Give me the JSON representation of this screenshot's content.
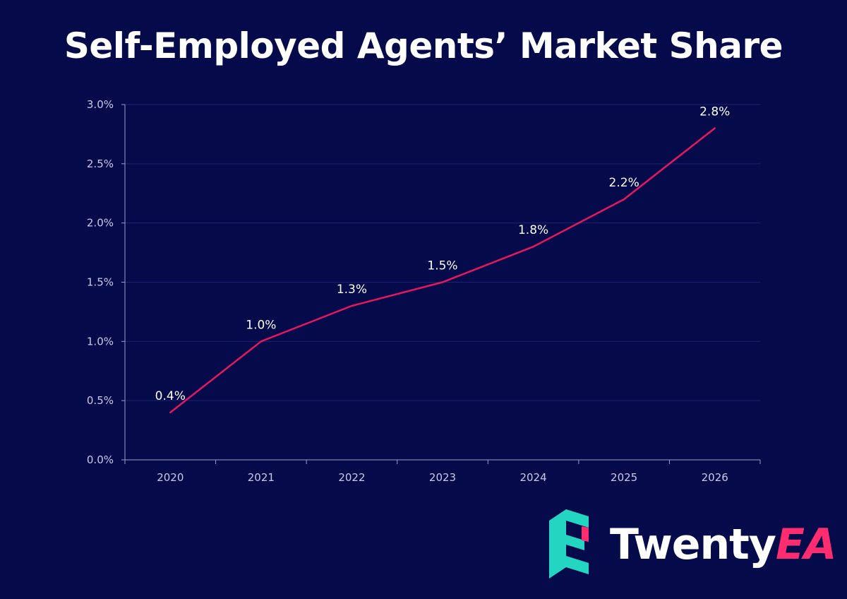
{
  "colors": {
    "background": "#050a4a",
    "line": "#e8175d",
    "grid": "#1b2470",
    "axis": "#9aa0c8",
    "brand_teal": "#22d6c2",
    "brand_pink": "#ff2d6f"
  },
  "brand": {
    "name_part1": "Twenty",
    "name_part2": "EA",
    "logo_icon": "twentyea-e-logo-icon"
  },
  "chart_data": {
    "type": "line",
    "title": "Self-Employed Agents’ Market Share",
    "xlabel": "",
    "ylabel": "",
    "categories": [
      "2020",
      "2021",
      "2022",
      "2023",
      "2024",
      "2025",
      "2026"
    ],
    "series": [
      {
        "name": "Market Share",
        "values": [
          0.4,
          1.0,
          1.3,
          1.5,
          1.8,
          2.2,
          2.8
        ],
        "labels": [
          "0.4%",
          "1.0%",
          "1.3%",
          "1.5%",
          "1.8%",
          "2.2%",
          "2.8%"
        ]
      }
    ],
    "ylim": [
      0,
      3.0
    ],
    "yticks": [
      0,
      0.5,
      1.0,
      1.5,
      2.0,
      2.5,
      3.0
    ],
    "ytick_labels": [
      "0.0%",
      "0.5%",
      "1.0%",
      "1.5%",
      "2.0%",
      "2.5%",
      "3.0%"
    ],
    "grid": true,
    "legend": "none"
  }
}
